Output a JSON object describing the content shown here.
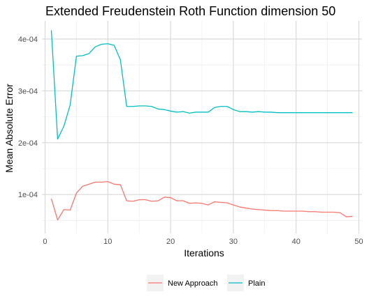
{
  "chart_data": {
    "type": "line",
    "title": "Extended Freudenstein Roth Function dimension 50",
    "xlabel": "Iterations",
    "ylabel": "Mean Absolute Error",
    "xlim": [
      -0.5,
      50.5
    ],
    "ylim": [
      2.5e-05,
      0.000435
    ],
    "x_ticks": [
      0,
      10,
      20,
      30,
      40,
      50
    ],
    "x_tick_labels": [
      "0",
      "10",
      "20",
      "30",
      "40",
      "50"
    ],
    "y_ticks": [
      0.0001,
      0.0002,
      0.0003,
      0.0004
    ],
    "y_tick_labels": [
      "1e-04",
      "2e-04",
      "3e-04",
      "4e-04"
    ],
    "grid": true,
    "legend_position": "bottom",
    "x": [
      1,
      2,
      3,
      4,
      5,
      6,
      7,
      8,
      9,
      10,
      11,
      12,
      13,
      14,
      15,
      16,
      17,
      18,
      19,
      20,
      21,
      22,
      23,
      24,
      25,
      26,
      27,
      28,
      29,
      30,
      31,
      32,
      33,
      34,
      35,
      36,
      37,
      38,
      39,
      40,
      41,
      42,
      43,
      44,
      45,
      46,
      47,
      48,
      49
    ],
    "series": [
      {
        "name": "New Approach",
        "color": "#F8766D",
        "values": [
          9.2e-05,
          5.1e-05,
          7.1e-05,
          7e-05,
          0.000103,
          0.000116,
          0.00012,
          0.000124,
          0.000124,
          0.000125,
          0.00012,
          0.000119,
          8.8e-05,
          8.7e-05,
          9e-05,
          9e-05,
          8.7e-05,
          8.8e-05,
          9.5e-05,
          9.4e-05,
          8.8e-05,
          8.8e-05,
          8.3e-05,
          8.4e-05,
          8.3e-05,
          8e-05,
          8.6e-05,
          8.5e-05,
          8.4e-05,
          8e-05,
          7.6e-05,
          7.4e-05,
          7.2e-05,
          7.1e-05,
          7e-05,
          6.9e-05,
          6.9e-05,
          6.8e-05,
          6.8e-05,
          6.8e-05,
          6.8e-05,
          6.7e-05,
          6.7e-05,
          6.6e-05,
          6.6e-05,
          6.6e-05,
          6.5e-05,
          5.7e-05,
          5.8e-05
        ]
      },
      {
        "name": "Plain",
        "color": "#00BFC4",
        "values": [
          0.000417,
          0.000207,
          0.000232,
          0.000273,
          0.000367,
          0.000368,
          0.000372,
          0.000385,
          0.00039,
          0.000391,
          0.000388,
          0.00036,
          0.00027,
          0.00027,
          0.000271,
          0.000271,
          0.00027,
          0.000265,
          0.000264,
          0.000261,
          0.000259,
          0.00026,
          0.000257,
          0.000259,
          0.000259,
          0.000259,
          0.000268,
          0.00027,
          0.00027,
          0.000264,
          0.00026,
          0.00026,
          0.000259,
          0.00026,
          0.000259,
          0.000259,
          0.000258,
          0.000258,
          0.000258,
          0.000258,
          0.000258,
          0.000258,
          0.000258,
          0.000258,
          0.000258,
          0.000258,
          0.000258,
          0.000258,
          0.000258
        ]
      }
    ]
  }
}
